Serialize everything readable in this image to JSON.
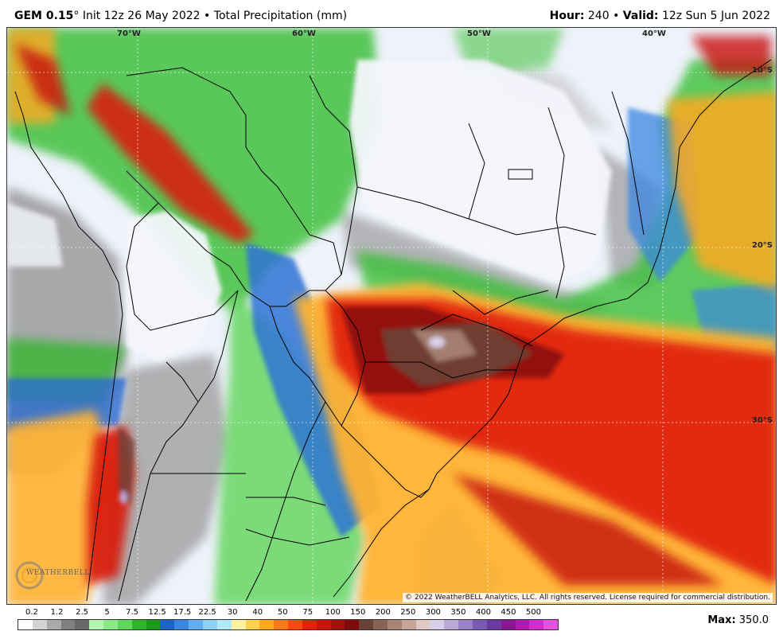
{
  "header": {
    "model": "GEM 0.15",
    "deg": "°",
    "init": "Init 12z 26 May 2022",
    "sep": "•",
    "product": "Total Precipitation (mm)",
    "hour_label": "Hour:",
    "hour_value": "240",
    "valid_label": "Valid:",
    "valid_value": "12z Sun 5 Jun 2022"
  },
  "map": {
    "lon_labels": [
      "70°W",
      "60°W",
      "50°W",
      "40°W"
    ],
    "lat_labels": [
      "10°S",
      "20°S",
      "30°S"
    ],
    "copyright": "© 2022 WeatherBELL Analytics, LLC. All rights reserved. License required for commercial distribution.",
    "logo_text": "WEATHERBELL"
  },
  "legend": {
    "labels": [
      "0.2",
      "1.2",
      "2.5",
      "5",
      "7.5",
      "12.5",
      "17.5",
      "22.5",
      "30",
      "40",
      "50",
      "75",
      "100",
      "150",
      "200",
      "250",
      "300",
      "350",
      "400",
      "450",
      "500"
    ],
    "colors": [
      "#ffffff",
      "#d3d3d3",
      "#a9a9a9",
      "#808080",
      "#696969",
      "#b5f5b0",
      "#8de88a",
      "#5fd65c",
      "#2fb52d",
      "#189a1b",
      "#1e63c8",
      "#3b87e0",
      "#63aef0",
      "#8fd0f7",
      "#b2e8fb",
      "#fff0a0",
      "#ffd24a",
      "#ffa81f",
      "#ff7a10",
      "#ff4a0a",
      "#e8200a",
      "#c8140a",
      "#a5100a",
      "#7e0d0a",
      "#6b4237",
      "#8a6356",
      "#a98475",
      "#c7a59a",
      "#e0c9c2",
      "#d8d0e8",
      "#b9a8d8",
      "#9a80c6",
      "#7d5ab2",
      "#6b3aa0",
      "#8a1690",
      "#b318b0",
      "#d62bd0",
      "#e850e0"
    ],
    "max_label": "Max:",
    "max_value": "350.0"
  }
}
